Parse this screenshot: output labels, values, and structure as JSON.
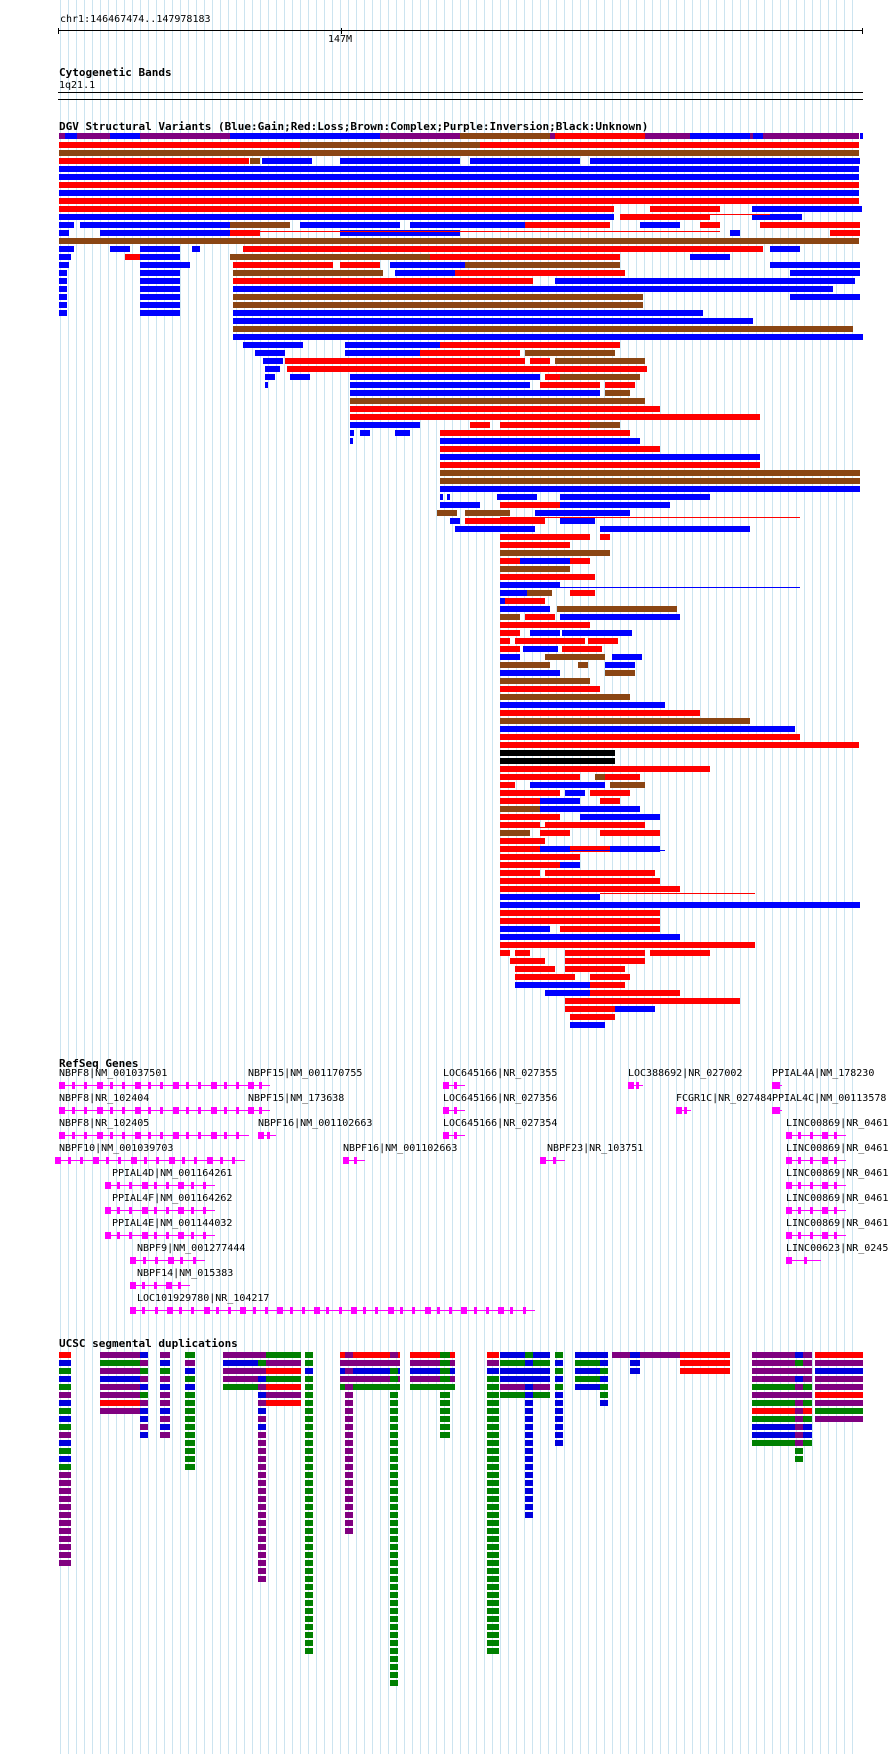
{
  "position_label": "chr1:146467474..147978183",
  "ruler_tick_label": "147M",
  "cytobands": {
    "title": "Cytogenetic Bands",
    "band": "1q21.1"
  },
  "dgv": {
    "title": "DGV Structural Variants (Blue:Gain;Red:Loss;Brown:Complex;Purple:Inversion;Black:Unknown)",
    "colors": {
      "gain": "#0000ff",
      "loss": "#ff0000",
      "complex": "#8b4513",
      "inversion": "#800080",
      "unknown": "#000000"
    }
  },
  "refseq": {
    "title": "RefSeq Genes",
    "color": "#ff00ff",
    "genes": [
      "NBPF8|NM_001037501",
      "NBPF8|NR_102404",
      "NBPF8|NR_102405",
      "NBPF10|NM_001039703",
      "PPIAL4D|NM_001164261",
      "PPIAL4F|NM_001164262",
      "PPIAL4E|NM_001144032",
      "NBPF9|NM_001277444",
      "NBPF14|NM_015383",
      "LOC101929780|NR_104217",
      "NBPF15|NM_001170755",
      "NBPF15|NM_173638",
      "NBPF16|NM_001102663",
      "NBPF16|NM_001102663",
      "LOC645166|NR_027355",
      "LOC645166|NR_027356",
      "LOC645166|NR_027354",
      "NBPF23|NR_103751",
      "LOC388692|NR_027002",
      "FCGR1C|NR_027484",
      "PPIAL4A|NM_178230",
      "PPIAL4C|NM_00113578",
      "LINC00869|NR_0461",
      "LINC00869|NR_0461",
      "LINC00869|NR_0461",
      "LINC00869|NR_0461",
      "LINC00869|NR_0461",
      "LINC00623|NR_0245"
    ]
  },
  "segdup": {
    "title": "UCSC segmental duplications",
    "colors": {
      "red": "#ff0000",
      "blue": "#0000dd",
      "green": "#008000",
      "purple": "#800080"
    }
  }
}
